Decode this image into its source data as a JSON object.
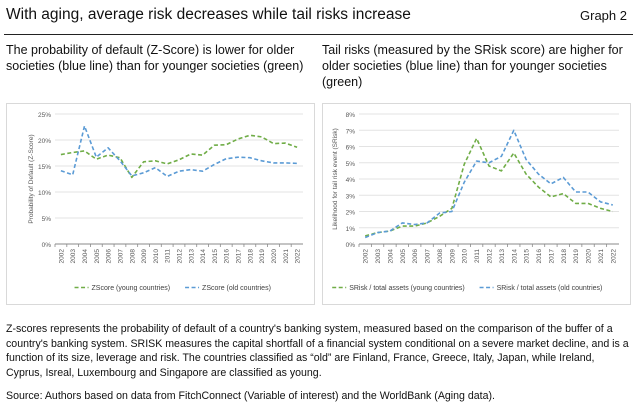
{
  "header": {
    "title": "With aging, average risk decreases while tail risks increase",
    "graph_label": "Graph 2"
  },
  "panel1": {
    "title": "The probability of default (Z-Score) is lower for older societies (blue line) than for younger societies (green)"
  },
  "panel2": {
    "title": "Tail risks (measured by the SRisk score) are higher for older societies (blue line) than for younger societies (green)"
  },
  "note": "Z-scores represents the probability of default of a country's banking system, measured based on the comparison of the buffer of a country's banking system. SRISK measures the capital shortfall of a financial system conditional on a severe market decline, and is a function of its size, leverage and risk. The countries classified as “old” are Finland, France, Greece, Italy, Japan, while Ireland, Cyprus, Isreal, Luxembourg and Singapore are classified as young.",
  "source": "Source: Authors based on data from FitchConnect (Variable of interest) and the WorldBank (Aging data).",
  "colors": {
    "green": "#70ad47",
    "blue": "#5b9bd5",
    "grid": "#e3e3e3",
    "axis": "#8a8a8a"
  },
  "chart_data": [
    {
      "type": "line",
      "title": "",
      "xlabel": "",
      "ylabel": "Probability of Default (Z-Score)",
      "categories": [
        "2002",
        "2003",
        "2004",
        "2005",
        "2006",
        "2007",
        "2008",
        "2009",
        "2010",
        "2011",
        "2012",
        "2013",
        "2014",
        "2015",
        "2016",
        "2017",
        "2018",
        "2019",
        "2020",
        "2021",
        "2022"
      ],
      "yticks": [
        "0%",
        "5%",
        "10%",
        "15%",
        "20%",
        "25%"
      ],
      "ylim": [
        0,
        25
      ],
      "grid": true,
      "legend_position": "bottom",
      "series": [
        {
          "name": "ZScore (young countries)",
          "color": "#70ad47",
          "values": [
            17.2,
            17.6,
            17.9,
            16.3,
            17.1,
            16.6,
            12.8,
            15.8,
            16.0,
            15.4,
            16.2,
            17.3,
            17.1,
            19.0,
            19.1,
            20.2,
            20.9,
            20.6,
            19.3,
            19.4,
            18.6
          ]
        },
        {
          "name": "ZScore (old countries)",
          "color": "#5b9bd5",
          "values": [
            14.1,
            13.3,
            22.7,
            16.7,
            18.5,
            16.0,
            13.1,
            13.7,
            14.7,
            13.0,
            14.0,
            14.3,
            14.0,
            15.3,
            16.4,
            16.7,
            16.6,
            16.0,
            15.6,
            15.6,
            15.5
          ]
        }
      ]
    },
    {
      "type": "line",
      "title": "",
      "xlabel": "",
      "ylabel": "Likelihood for tail risk event (SRisk)",
      "categories": [
        "2002",
        "2003",
        "2004",
        "2005",
        "2006",
        "2007",
        "2008",
        "2009",
        "2010",
        "2011",
        "2012",
        "2013",
        "2014",
        "2015",
        "2016",
        "2017",
        "2018",
        "2019",
        "2020",
        "2021",
        "2022"
      ],
      "yticks": [
        "0%",
        "1%",
        "2%",
        "3%",
        "4%",
        "5%",
        "6%",
        "7%",
        "8%"
      ],
      "ylim": [
        0,
        8
      ],
      "grid": true,
      "legend_position": "bottom",
      "series": [
        {
          "name": "SRisk / total assets (young countries)",
          "color": "#70ad47",
          "values": [
            0.5,
            0.7,
            0.8,
            1.1,
            1.1,
            1.3,
            1.7,
            2.2,
            4.9,
            6.5,
            4.8,
            4.5,
            5.6,
            4.3,
            3.5,
            2.9,
            3.1,
            2.5,
            2.5,
            2.2,
            2.0
          ]
        },
        {
          "name": "SRisk / total assets (old countries)",
          "color": "#5b9bd5",
          "values": [
            0.4,
            0.7,
            0.8,
            1.3,
            1.2,
            1.3,
            1.9,
            2.0,
            3.8,
            5.1,
            5.0,
            5.4,
            7.0,
            5.2,
            4.3,
            3.7,
            4.1,
            3.2,
            3.2,
            2.6,
            2.4
          ]
        }
      ]
    }
  ]
}
